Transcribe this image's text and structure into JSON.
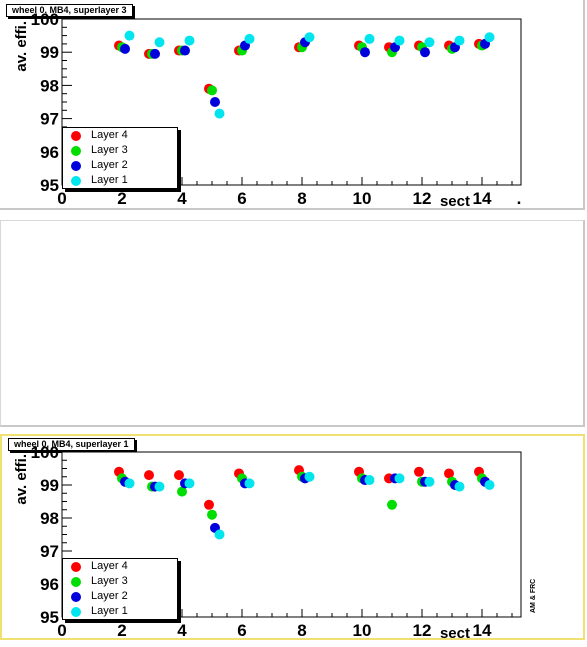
{
  "chart_data": [
    {
      "type": "scatter",
      "pad_title": "wheel 0, MB4, superlayer 3",
      "ylabel": "av. effi.",
      "xlabel": "sect",
      "xlim": [
        0,
        15.3
      ],
      "ylim": [
        95,
        100
      ],
      "x_ticks": [
        "0",
        "2",
        "4",
        "6",
        "8",
        "10",
        "12",
        "14"
      ],
      "y_ticks": [
        "95",
        "96",
        "97",
        "98",
        "99",
        "100"
      ],
      "axis_end_mark": ".",
      "series": [
        {
          "name": "Layer 4",
          "color": "#ff0000",
          "x": [
            2,
            3,
            4,
            5,
            6,
            8,
            10,
            11,
            12,
            13,
            14
          ],
          "y": [
            99.2,
            98.95,
            99.05,
            97.9,
            99.05,
            99.15,
            99.2,
            99.15,
            99.2,
            99.2,
            99.25
          ]
        },
        {
          "name": "Layer 3",
          "color": "#00dd00",
          "x": [
            2,
            3,
            4,
            5,
            6,
            8,
            10,
            11,
            12,
            13,
            14
          ],
          "y": [
            99.15,
            98.95,
            99.05,
            97.85,
            99.05,
            99.15,
            99.15,
            99.0,
            99.15,
            99.1,
            99.2
          ]
        },
        {
          "name": "Layer 2",
          "color": "#0000dd",
          "x": [
            2,
            3,
            4,
            5,
            6,
            8,
            10,
            11,
            12,
            13,
            14
          ],
          "y": [
            99.1,
            98.95,
            99.05,
            97.5,
            99.2,
            99.3,
            99.0,
            99.15,
            99.0,
            99.15,
            99.25
          ]
        },
        {
          "name": "Layer 1",
          "color": "#00e5ee",
          "x": [
            2,
            3,
            4,
            5,
            6,
            8,
            10,
            11,
            12,
            13,
            14
          ],
          "y": [
            99.5,
            99.3,
            99.35,
            97.15,
            99.4,
            99.45,
            99.4,
            99.35,
            99.3,
            99.35,
            99.45
          ]
        }
      ]
    },
    {
      "type": "scatter",
      "pad_title": "wheel 0, MB4, superlayer 1",
      "ylabel": "av. effi.",
      "xlabel": "sect",
      "xlim": [
        0,
        15.3
      ],
      "ylim": [
        95,
        100
      ],
      "x_ticks": [
        "0",
        "2",
        "4",
        "6",
        "8",
        "10",
        "12",
        "14"
      ],
      "y_ticks": [
        "95",
        "96",
        "97",
        "98",
        "99",
        "100"
      ],
      "credit": "AM & FRC",
      "series": [
        {
          "name": "Layer 4",
          "color": "#ff0000",
          "x": [
            2,
            3,
            4,
            5,
            6,
            8,
            10,
            11,
            12,
            13,
            14
          ],
          "y": [
            99.4,
            99.3,
            99.3,
            98.4,
            99.35,
            99.45,
            99.4,
            99.2,
            99.4,
            99.35,
            99.4
          ]
        },
        {
          "name": "Layer 3",
          "color": "#00dd00",
          "x": [
            2,
            3,
            4,
            5,
            6,
            8,
            10,
            11,
            12,
            13,
            14
          ],
          "y": [
            99.2,
            98.95,
            98.8,
            98.1,
            99.2,
            99.25,
            99.2,
            98.4,
            99.1,
            99.1,
            99.2
          ]
        },
        {
          "name": "Layer 2",
          "color": "#0000dd",
          "x": [
            2,
            3,
            4,
            5,
            6,
            8,
            10,
            11,
            12,
            13,
            14
          ],
          "y": [
            99.1,
            98.95,
            99.05,
            97.7,
            99.05,
            99.2,
            99.15,
            99.2,
            99.1,
            99.0,
            99.1
          ]
        },
        {
          "name": "Layer 1",
          "color": "#00e5ee",
          "x": [
            2,
            3,
            4,
            5,
            6,
            8,
            10,
            11,
            12,
            13,
            14
          ],
          "y": [
            99.05,
            98.95,
            99.05,
            97.5,
            99.05,
            99.25,
            99.15,
            99.2,
            99.1,
            98.95,
            99.0
          ]
        }
      ]
    }
  ]
}
